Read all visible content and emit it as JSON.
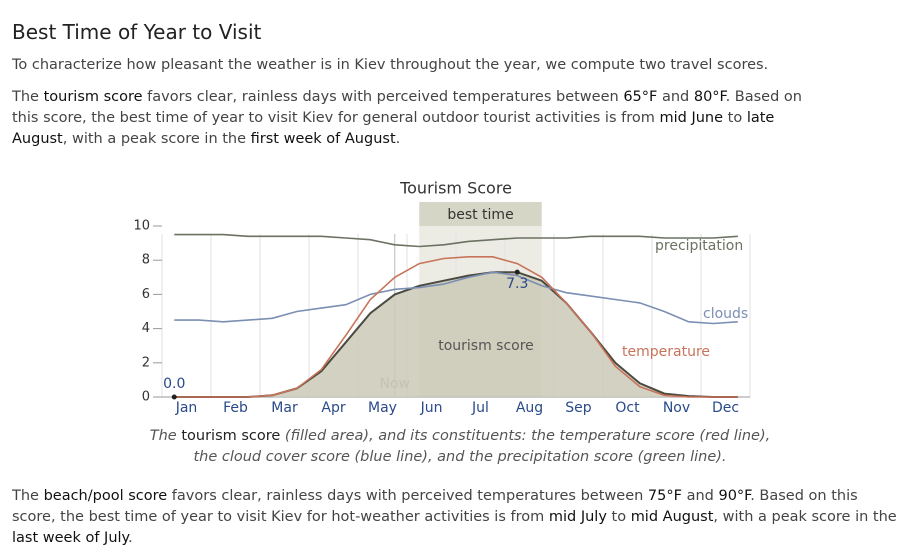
{
  "heading": "Best Time of Year to Visit",
  "intro": "To characterize how pleasant the weather is in Kiev throughout the year, we compute two travel scores.",
  "paragraph1": [
    "The ",
    "tourism score",
    " favors clear, rainless days with perceived temperatures between ",
    "65°F",
    " and ",
    "80°F",
    ". Based on this score, the best time of year to visit Kiev for general outdoor tourist activities is from ",
    "mid June",
    " to ",
    "late August",
    ", with a peak score in the ",
    "first week of August",
    "."
  ],
  "caption": [
    "The ",
    "tourism score",
    " (filled area), and its constituents: the temperature score (red line), the cloud cover score (blue line), and the precipitation score (green line)."
  ],
  "paragraph2": [
    "The ",
    "beach/pool score",
    " favors clear, rainless days with perceived temperatures between ",
    "75°F",
    " and ",
    "90°F",
    ". Based on this score, the best time of year to visit Kiev for hot-weather activities is from ",
    "mid July",
    " to ",
    "mid August",
    ", with a peak score in the ",
    "last week of July",
    "."
  ],
  "chart_data": {
    "type": "line",
    "title": "Tourism Score",
    "categories": [
      "Jan",
      null,
      "Feb",
      null,
      "Mar",
      null,
      "Apr",
      null,
      "May",
      null,
      "Jun",
      null,
      "Jul",
      null,
      "Aug",
      null,
      "Sep",
      null,
      "Oct",
      null,
      "Nov",
      null,
      "Dec",
      null
    ],
    "ylim": [
      0,
      10
    ],
    "yticks": [
      0,
      2,
      4,
      6,
      8,
      10
    ],
    "best_time": {
      "label": "best time",
      "start": 10,
      "end": 15
    },
    "now": {
      "label": "Now",
      "index": 9
    },
    "series": [
      {
        "name": "precipitation",
        "color": "#6b7262",
        "values": [
          9.5,
          9.5,
          9.5,
          9.4,
          9.4,
          9.4,
          9.4,
          9.3,
          9.2,
          8.9,
          8.8,
          8.9,
          9.1,
          9.2,
          9.3,
          9.3,
          9.3,
          9.4,
          9.4,
          9.4,
          9.3,
          9.3,
          9.3,
          9.4
        ]
      },
      {
        "name": "clouds",
        "color": "#7b8fb2",
        "values": [
          4.5,
          4.5,
          4.4,
          4.5,
          4.6,
          5.0,
          5.2,
          5.4,
          6.0,
          6.3,
          6.4,
          6.6,
          7.0,
          7.3,
          7.1,
          6.5,
          6.1,
          5.9,
          5.7,
          5.5,
          5.0,
          4.4,
          4.3,
          4.4
        ]
      },
      {
        "name": "temperature",
        "color": "#c8735a",
        "values": [
          0,
          0,
          0,
          0,
          0.1,
          0.5,
          1.6,
          3.6,
          5.7,
          7.0,
          7.8,
          8.1,
          8.2,
          8.2,
          7.8,
          7.0,
          5.5,
          3.8,
          1.8,
          0.6,
          0.1,
          0,
          0,
          0
        ]
      },
      {
        "name": "tourism score",
        "color": "#4a4a40",
        "fill": "#cbc9b6",
        "values": [
          0,
          0,
          0,
          0,
          0.1,
          0.5,
          1.5,
          3.2,
          4.9,
          6.0,
          6.5,
          6.8,
          7.1,
          7.3,
          7.3,
          6.8,
          5.5,
          3.8,
          2.0,
          0.8,
          0.2,
          0.05,
          0,
          0
        ],
        "value_labels": [
          "0.0",
          null,
          null,
          null,
          null,
          null,
          null,
          null,
          null,
          null,
          null,
          null,
          null,
          null,
          "7.3",
          null,
          null,
          null,
          null,
          null,
          null,
          null,
          null,
          null
        ]
      }
    ]
  }
}
